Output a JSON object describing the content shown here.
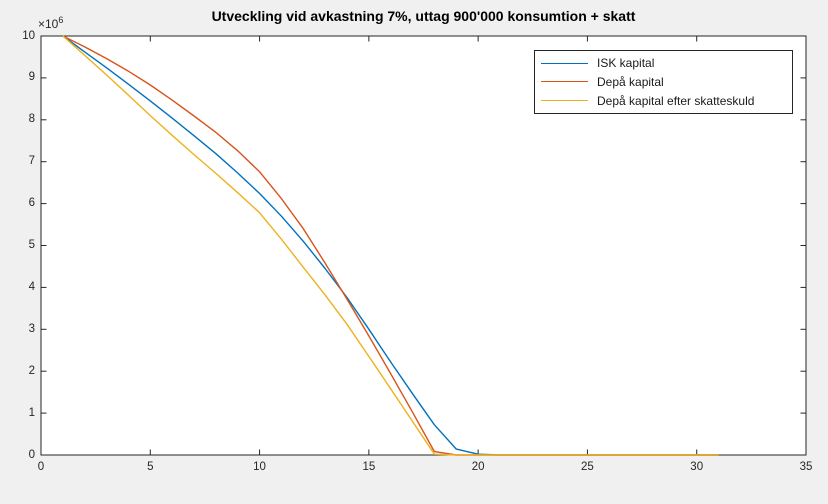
{
  "figure": {
    "background": "#f0f0f0",
    "plot_background": "#ffffff",
    "axis_color": "#262626",
    "tick_label_color": "#262626"
  },
  "chart_data": {
    "type": "line",
    "title": "Utveckling vid avkastning 7%, uttag 900'000 konsumtion + skatt",
    "xlabel": "",
    "ylabel": "",
    "grid": false,
    "legend_position": "upper-right",
    "xlim": [
      0,
      35
    ],
    "ylim": [
      0,
      10000000
    ],
    "x_ticks": [
      0,
      5,
      10,
      15,
      20,
      25,
      30,
      35
    ],
    "y_ticks": [
      0,
      1,
      2,
      3,
      4,
      5,
      6,
      7,
      8,
      9,
      10
    ],
    "y_multiplier": {
      "base": "×10",
      "exponent": "6"
    },
    "y_unit": "millions",
    "x": [
      1,
      2,
      3,
      4,
      5,
      6,
      7,
      8,
      9,
      10,
      11,
      12,
      13,
      14,
      15,
      16,
      17,
      18,
      19,
      20,
      21,
      22,
      23,
      24,
      25,
      26,
      27,
      28,
      29,
      30,
      31
    ],
    "series": [
      {
        "name": "ISK kapital",
        "color": "#0072BD",
        "values_millions": [
          10.0,
          9.62,
          9.24,
          8.85,
          8.45,
          8.04,
          7.62,
          7.19,
          6.73,
          6.24,
          5.7,
          5.1,
          4.45,
          3.76,
          3.0,
          2.22,
          1.46,
          0.72,
          0.14,
          0.02,
          0,
          0,
          0,
          0,
          0,
          0,
          0,
          0,
          0,
          0,
          0
        ]
      },
      {
        "name": "Depå kapital",
        "color": "#D95319",
        "values_millions": [
          10.0,
          9.74,
          9.46,
          9.16,
          8.83,
          8.47,
          8.09,
          7.7,
          7.26,
          6.76,
          6.12,
          5.4,
          4.58,
          3.72,
          2.84,
          1.94,
          1.02,
          0.08,
          0,
          0,
          0,
          0,
          0,
          0,
          0,
          0,
          0,
          0,
          0,
          0,
          0
        ]
      },
      {
        "name": "Depå kapital efter skatteskuld",
        "color": "#EDB120",
        "values_millions": [
          10.0,
          9.54,
          9.07,
          8.59,
          8.1,
          7.63,
          7.17,
          6.72,
          6.26,
          5.78,
          5.15,
          4.48,
          3.82,
          3.12,
          2.35,
          1.58,
          0.8,
          0.02,
          0,
          0,
          0,
          0,
          0,
          0,
          0,
          0,
          0,
          0,
          0,
          0,
          0
        ]
      }
    ]
  }
}
